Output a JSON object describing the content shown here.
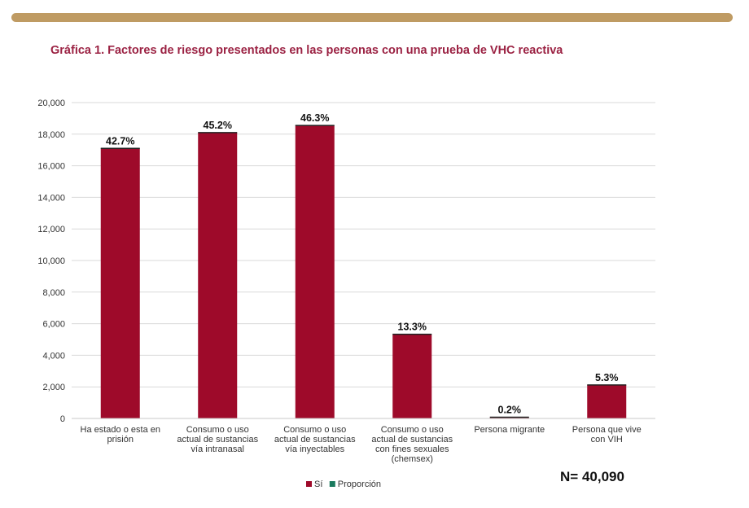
{
  "header_bar_color": "#bf9b63",
  "title": "Gráfica 1. Factores de riesgo presentados en las personas con una prueba de VHC reactiva",
  "n_label": "N=",
  "n_value": "40,090",
  "chart_data": {
    "type": "bar",
    "categories": [
      [
        "Ha estado o esta en",
        "prisión"
      ],
      [
        "Consumo o uso",
        "actual de sustancias",
        "vía intranasal"
      ],
      [
        "Consumo o uso",
        "actual de sustancias",
        "vía inyectables"
      ],
      [
        "Consumo o uso",
        "actual de sustancias",
        "con fines sexuales",
        "(chemsex)"
      ],
      [
        "Persona migrante"
      ],
      [
        "Persona que vive",
        "con VIH"
      ]
    ],
    "series": [
      {
        "name": "Sí",
        "color": "#9e0a2a",
        "values": [
          17100,
          18100,
          18550,
          5330,
          80,
          2120
        ]
      },
      {
        "name": "Proporción",
        "color": "#1a7a5e",
        "values": [
          0.427,
          0.452,
          0.463,
          0.133,
          0.002,
          0.053
        ]
      }
    ],
    "data_labels": [
      "42.7%",
      "45.2%",
      "46.3%",
      "13.3%",
      "0.2%",
      "5.3%"
    ],
    "ylim": [
      0,
      20000
    ],
    "yticks": [
      "0",
      "2,000",
      "4,000",
      "6,000",
      "8,000",
      "10,000",
      "12,000",
      "14,000",
      "16,000",
      "18,000",
      "20,000"
    ],
    "grid": true,
    "legend_position": "bottom-center"
  }
}
